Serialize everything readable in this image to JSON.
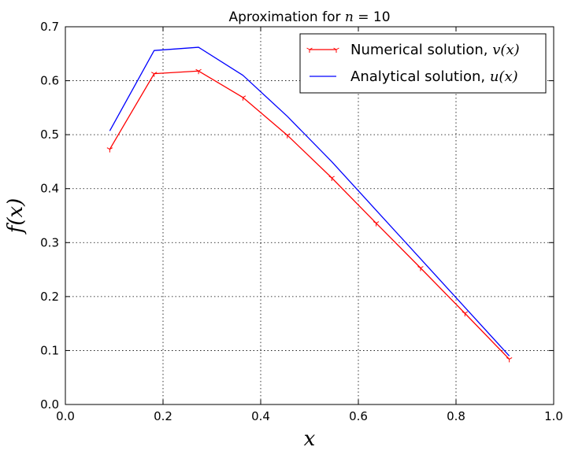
{
  "chart_data": {
    "type": "line",
    "title_prefix": "Aproximation for ",
    "title_math": "n",
    "title_suffix": " = 10",
    "xlabel": "x",
    "ylabel": "f(x)",
    "xlim": [
      0.0,
      1.0
    ],
    "ylim": [
      0.0,
      0.7
    ],
    "xticks": [
      "0.0",
      "0.2",
      "0.4",
      "0.6",
      "0.8",
      "1.0"
    ],
    "yticks": [
      "0.0",
      "0.1",
      "0.2",
      "0.3",
      "0.4",
      "0.5",
      "0.6",
      "0.7"
    ],
    "grid": true,
    "legend_position": "top-right",
    "series": [
      {
        "name": "Numerical solution, ",
        "name_math": "v(x)",
        "color": "#ff0000",
        "marker": "tri-down",
        "x": [
          0.0909,
          0.1818,
          0.2727,
          0.3636,
          0.4545,
          0.5455,
          0.6364,
          0.7273,
          0.8182,
          0.9091
        ],
        "y": [
          0.473,
          0.613,
          0.618,
          0.569,
          0.499,
          0.42,
          0.336,
          0.253,
          0.169,
          0.084
        ]
      },
      {
        "name": "Analytical solution, ",
        "name_math": "u(x)",
        "color": "#0000ff",
        "marker": "none",
        "x": [
          0.0909,
          0.1818,
          0.2727,
          0.3636,
          0.4545,
          0.5455,
          0.6364,
          0.7273,
          0.8182,
          0.9091
        ],
        "y": [
          0.507,
          0.656,
          0.662,
          0.61,
          0.534,
          0.45,
          0.36,
          0.27,
          0.18,
          0.09
        ]
      }
    ]
  }
}
